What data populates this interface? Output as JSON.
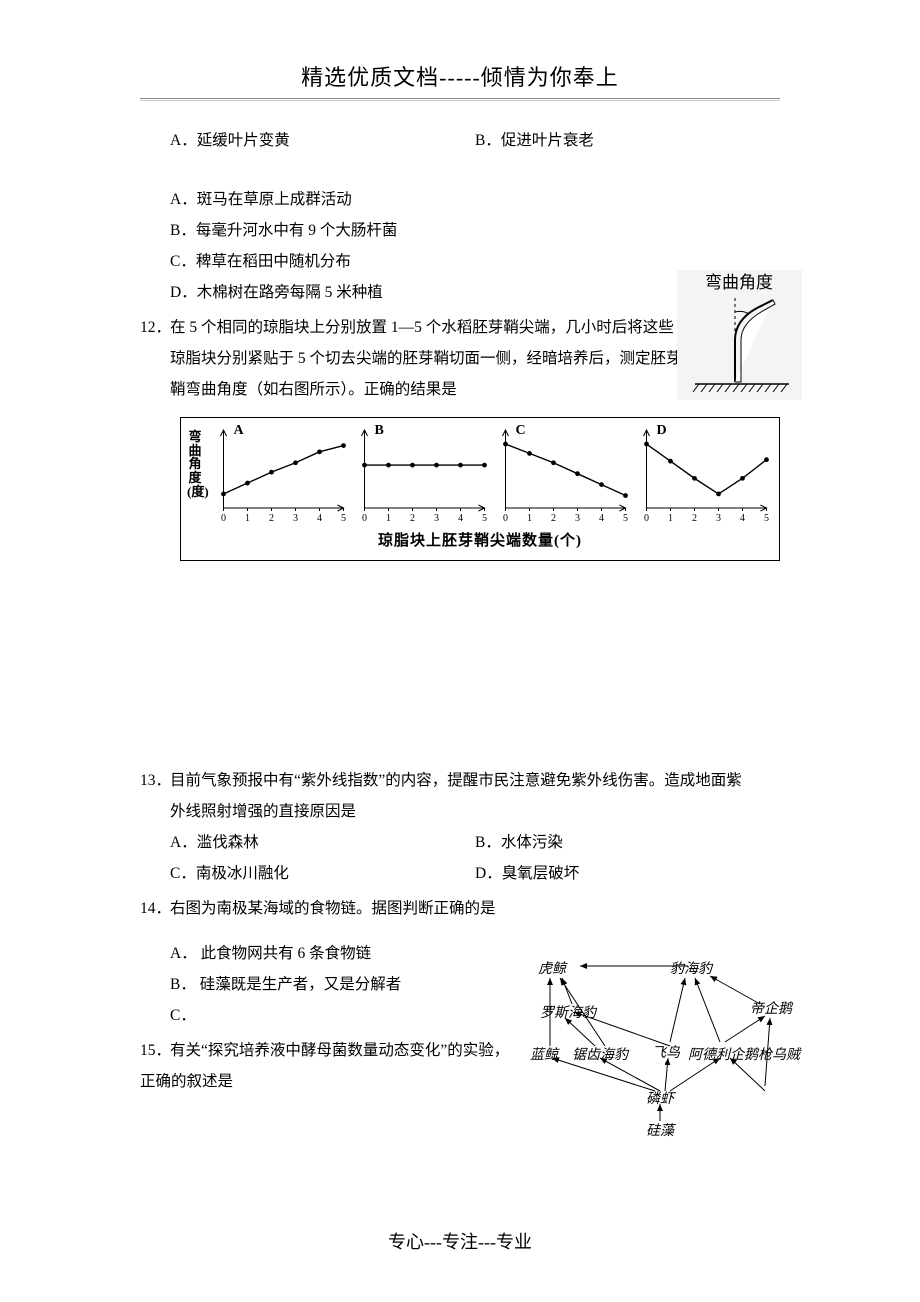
{
  "header": {
    "title": "精选优质文档-----倾情为你奉上"
  },
  "footer": {
    "text": "专心---专注---专业"
  },
  "q10_opts": {
    "a": "A．延缓叶片变黄",
    "b": "B．促进叶片衰老"
  },
  "q11_opts": {
    "a": "A．斑马在草原上成群活动",
    "b": "B．每毫升河水中有 9 个大肠杆菌",
    "c": "C．稗草在稻田中随机分布",
    "d": "D．木棉树在路旁每隔 5 米种植"
  },
  "q12": {
    "num": "12．",
    "line1": "在 5 个相同的琼脂块上分别放置 1—5 个水稻胚芽鞘尖端，几小时后将这些",
    "line2": "琼脂块分别紧贴于 5 个切去尖端的胚芽鞘切面一侧，经暗培养后，测定胚芽",
    "line3": "鞘弯曲角度（如右图所示）。正确的结果是"
  },
  "bend_fig": {
    "label": "弯曲角度"
  },
  "charts": {
    "y_label": "弯曲角度(度)",
    "x_caption": "琼脂块上胚芽鞘尖端数量(个)",
    "panels": [
      "A",
      "B",
      "C",
      "D"
    ],
    "xticks": [
      "0",
      "1",
      "2",
      "3",
      "4",
      "5"
    ],
    "series": {
      "A": [
        18,
        32,
        46,
        58,
        72,
        80
      ],
      "B": [
        55,
        55,
        55,
        55,
        55,
        55
      ],
      "C": [
        82,
        70,
        58,
        44,
        30,
        16
      ],
      "D": [
        82,
        60,
        38,
        18,
        38,
        62
      ]
    },
    "axis_color": "#000000",
    "point_color": "#000000",
    "line_color": "#000000"
  },
  "q13": {
    "num": "13．",
    "stem1": "目前气象预报中有“紫外线指数”的内容，提醒市民注意避免紫外线伤害。造成地面紫",
    "stem2": "外线照射增强的直接原因是",
    "a": "A．滥伐森林",
    "b": "B．水体污染",
    "c": "C．南极冰川融化",
    "d": "D．臭氧层破坏"
  },
  "q14": {
    "num": "14．",
    "stem": "右图为南极某海域的食物链。据图判断正确的是",
    "a": "A． 此食物网共有 6 条食物链",
    "b": "B． 硅藻既是生产者，又是分解者",
    "c": "C．"
  },
  "q15": {
    "num": "15．",
    "stem1": "有关“探究培养液中酵母菌数量动态变化”的实验，",
    "stem2": "正确的叙述是"
  },
  "foodweb": {
    "nodes": {
      "huJing": "虎鲸",
      "baoHaiBao": "豹海豹",
      "diQiE": "帝企鹅",
      "luoSi": "罗斯海豹",
      "lanJing": "蓝鲸",
      "juChi": "锯齿海豹",
      "feiNiao": "飞鸟",
      "aDeLi": "阿德利企鹅",
      "qiangWuZei": "枪乌贼",
      "linXia": "磷虾",
      "guiZao": "硅藻"
    }
  }
}
